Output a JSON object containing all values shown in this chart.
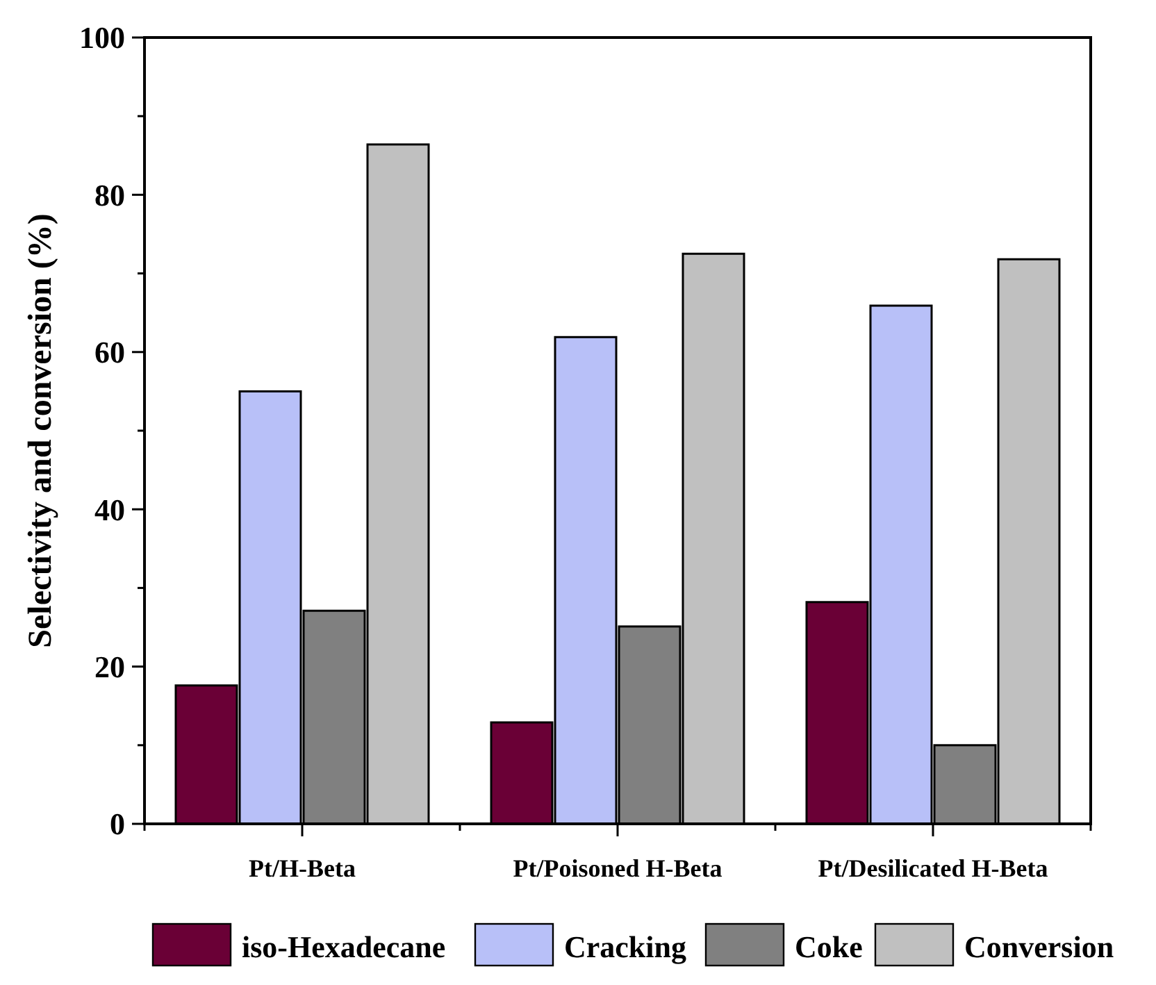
{
  "chart_data": {
    "type": "bar",
    "ylabel": "Selectivity and conversion (%)",
    "categories": [
      "Pt/H-Beta",
      "Pt/Poisoned H-Beta",
      "Pt/Desilicated H-Beta"
    ],
    "series": [
      {
        "name": "iso-Hexadecane",
        "color": "#6a0036",
        "values": [
          17.6,
          12.9,
          28.2
        ]
      },
      {
        "name": "Cracking",
        "color": "#b8c0f8",
        "values": [
          55,
          61.9,
          65.9
        ]
      },
      {
        "name": "Coke",
        "color": "#808080",
        "values": [
          27.1,
          25.1,
          10
        ]
      },
      {
        "name": "Conversion",
        "color": "#c0c0c0",
        "values": [
          86.4,
          72.5,
          71.8
        ]
      }
    ],
    "ylim": [
      0,
      100
    ],
    "yticks": [
      0,
      {
        "value": 10,
        "label": null
      },
      20,
      {
        "value": 30,
        "label": null
      },
      40,
      {
        "value": 50,
        "label": null
      },
      60,
      {
        "value": 70,
        "label": null
      },
      80,
      {
        "value": 90,
        "label": null
      },
      100
    ],
    "grid": false,
    "legend": "bottom"
  }
}
